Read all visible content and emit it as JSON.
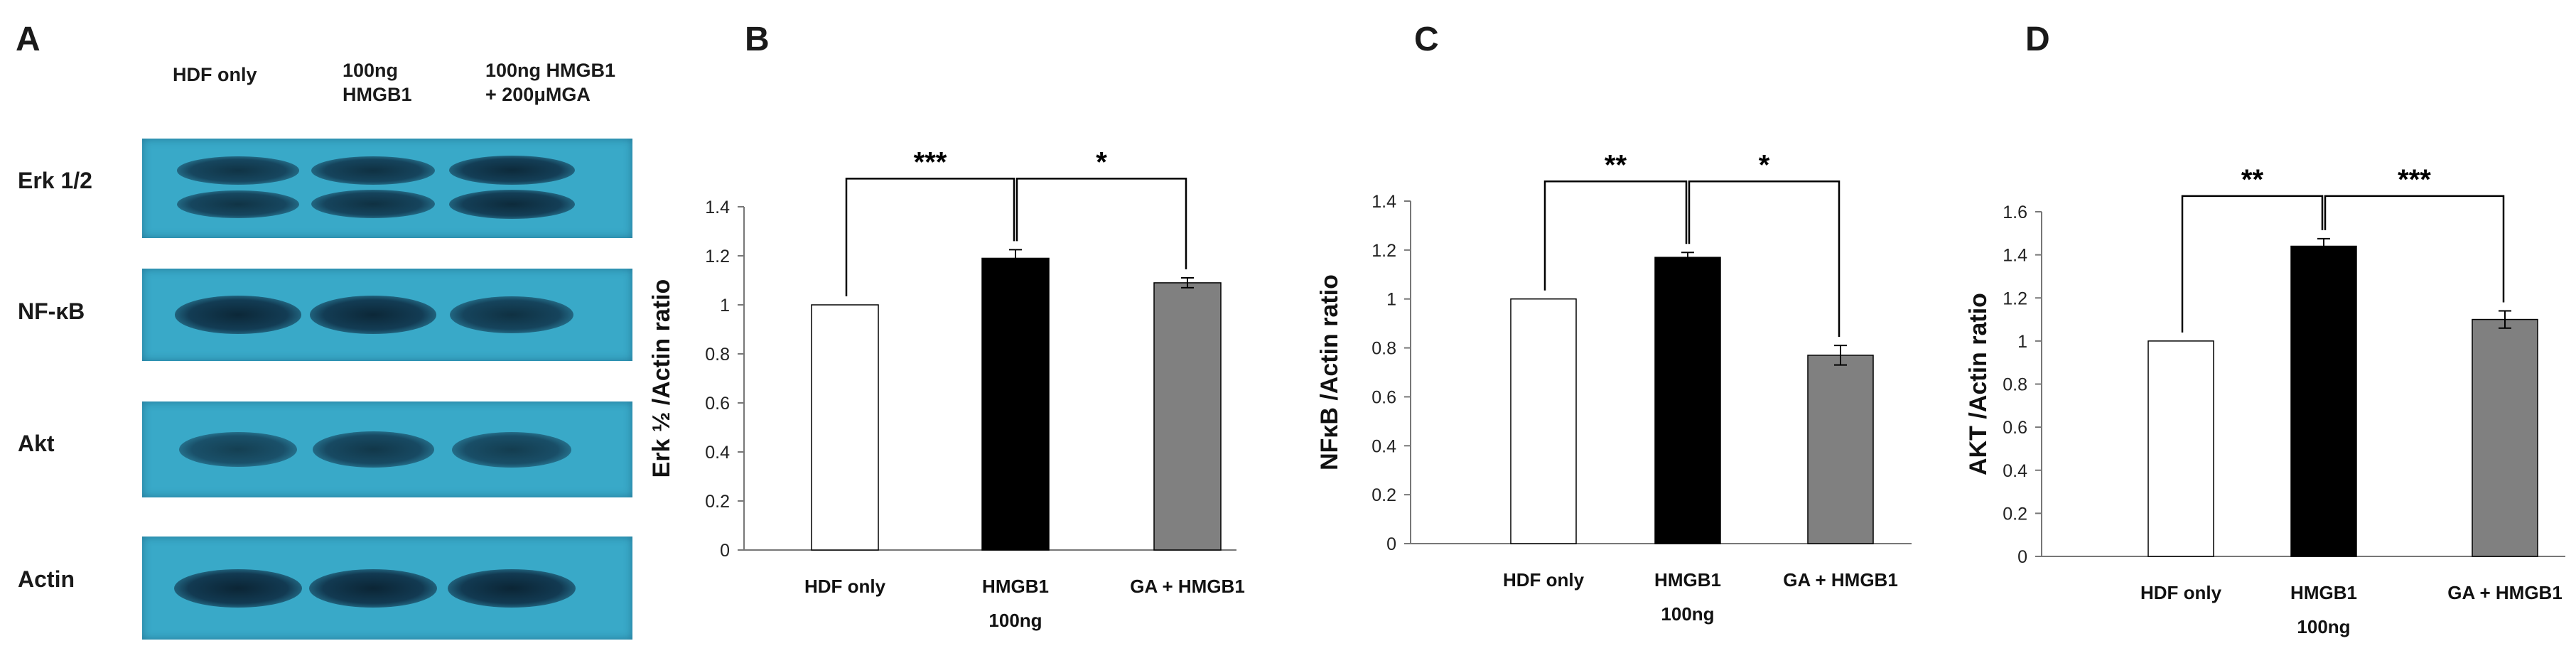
{
  "panel_letters": [
    "A",
    "B",
    "C",
    "D"
  ],
  "blot": {
    "lane_headers": [
      "HDF only",
      "100ng\nHMGB1",
      "100ng  HMGB1\n+ 200μMGA"
    ],
    "rows": [
      {
        "label": "Erk 1/2",
        "band_intensity": [
          0.75,
          0.8,
          0.9
        ]
      },
      {
        "label": "NF-κB",
        "band_intensity": [
          0.95,
          0.95,
          0.8
        ]
      },
      {
        "label": "Akt",
        "band_intensity": [
          0.55,
          0.7,
          0.6
        ]
      },
      {
        "label": "Actin",
        "band_intensity": [
          1.0,
          1.0,
          1.0
        ]
      }
    ],
    "colors": {
      "membrane": "#39a9c8",
      "band": "#0b2535"
    }
  },
  "chart_data": [
    {
      "panel": "B",
      "type": "bar",
      "categories": [
        "HDF only",
        "HMGB1",
        "GA + HMGB1"
      ],
      "sublabel": "100ng",
      "values": [
        1.0,
        1.19,
        1.09
      ],
      "errors": [
        0,
        0.035,
        0.02
      ],
      "colors": [
        "#ffffff",
        "#000000",
        "#808080"
      ],
      "ylabel": "Erk ½ /Actin ratio",
      "ylim": [
        0,
        1.4
      ],
      "yticks": [
        "0",
        "0.2",
        "0.4",
        "0.6",
        "0.8",
        "1",
        "1.2",
        "1.4"
      ],
      "significance": [
        {
          "from": 0,
          "to": 1,
          "label": "***"
        },
        {
          "from": 1,
          "to": 2,
          "label": "*"
        }
      ]
    },
    {
      "panel": "C",
      "type": "bar",
      "categories": [
        "HDF only",
        "HMGB1",
        "GA + HMGB1"
      ],
      "sublabel": "100ng",
      "values": [
        1.0,
        1.17,
        0.77
      ],
      "errors": [
        0,
        0.02,
        0.04
      ],
      "colors": [
        "#ffffff",
        "#000000",
        "#808080"
      ],
      "ylabel": "NFκB /Actin ratio",
      "ylim": [
        0,
        1.4
      ],
      "yticks": [
        "0",
        "0.2",
        "0.4",
        "0.6",
        "0.8",
        "1",
        "1.2",
        "1.4"
      ],
      "significance": [
        {
          "from": 0,
          "to": 1,
          "label": "**"
        },
        {
          "from": 1,
          "to": 2,
          "label": "*"
        }
      ]
    },
    {
      "panel": "D",
      "type": "bar",
      "categories": [
        "HDF only",
        "HMGB1",
        "GA + HMGB1"
      ],
      "sublabel": "100ng",
      "values": [
        1.0,
        1.44,
        1.1
      ],
      "errors": [
        0,
        0.035,
        0.04
      ],
      "colors": [
        "#ffffff",
        "#000000",
        "#808080"
      ],
      "ylabel": "AKT /Actin ratio",
      "ylim": [
        0,
        1.6
      ],
      "yticks": [
        "0",
        "0.2",
        "0.4",
        "0.6",
        "0.8",
        "1",
        "1.2",
        "1.4",
        "1.6"
      ],
      "significance": [
        {
          "from": 0,
          "to": 1,
          "label": "**"
        },
        {
          "from": 1,
          "to": 2,
          "label": "***"
        }
      ]
    }
  ]
}
